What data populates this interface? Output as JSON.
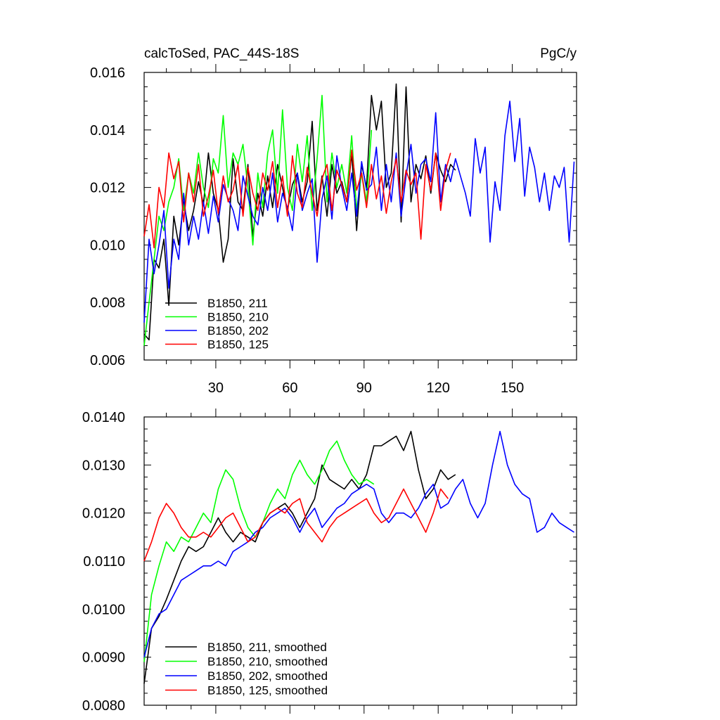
{
  "chart_data": [
    {
      "type": "line",
      "title": "calcToSed, PAC_44S-18S",
      "units": "PgC/y",
      "xlabel": "",
      "ylabel": "",
      "xlim": [
        1,
        176
      ],
      "ylim": [
        0.006,
        0.016
      ],
      "grid": false,
      "legend_position": "bottom-left",
      "xticks": [
        30,
        60,
        90,
        120,
        150
      ],
      "xtick_labels": [
        "30",
        "60",
        "90",
        "120",
        "150"
      ],
      "yticks": [
        0.006,
        0.008,
        0.01,
        0.012,
        0.014,
        0.016
      ],
      "ytick_labels": [
        "0.006",
        "0.008",
        "0.010",
        "0.012",
        "0.014",
        "0.016"
      ],
      "series": [
        {
          "name": "B1850, 211",
          "color": "#000000",
          "x": [
            1,
            3,
            5,
            7,
            9,
            11,
            13,
            15,
            17,
            19,
            21,
            23,
            25,
            27,
            29,
            31,
            33,
            35,
            37,
            39,
            41,
            43,
            45,
            47,
            49,
            51,
            53,
            55,
            57,
            59,
            61,
            63,
            65,
            67,
            69,
            71,
            73,
            75,
            77,
            79,
            81,
            83,
            85,
            87,
            89,
            91,
            93,
            95,
            97,
            99,
            101,
            103,
            105,
            107,
            109,
            111,
            113,
            115,
            117,
            119,
            121,
            123,
            125,
            127
          ],
          "values": [
            0.0069,
            0.0067,
            0.0095,
            0.0092,
            0.0102,
            0.0079,
            0.011,
            0.01,
            0.0115,
            0.0105,
            0.0112,
            0.0122,
            0.0114,
            0.0132,
            0.0118,
            0.0112,
            0.0094,
            0.0102,
            0.013,
            0.0115,
            0.0112,
            0.0128,
            0.0103,
            0.0118,
            0.011,
            0.0124,
            0.0113,
            0.0128,
            0.012,
            0.0112,
            0.0121,
            0.0125,
            0.0115,
            0.0122,
            0.0143,
            0.0112,
            0.0124,
            0.011,
            0.0128,
            0.0118,
            0.0122,
            0.0115,
            0.0132,
            0.0105,
            0.0128,
            0.012,
            0.0152,
            0.014,
            0.015,
            0.012,
            0.0125,
            0.0156,
            0.0108,
            0.0155,
            0.0115,
            0.0128,
            0.0123,
            0.0131,
            0.0118,
            0.0132,
            0.0126,
            0.0122,
            0.0128,
            0.0126
          ]
        },
        {
          "name": "B1850, 210",
          "color": "#00ff00",
          "x": [
            1,
            3,
            5,
            7,
            9,
            11,
            13,
            15,
            17,
            19,
            21,
            23,
            25,
            27,
            29,
            31,
            33,
            35,
            37,
            39,
            41,
            43,
            45,
            47,
            49,
            51,
            53,
            55,
            57,
            59,
            61,
            63,
            65,
            67,
            69,
            71,
            73,
            75,
            77,
            79,
            81,
            83,
            85,
            87,
            89,
            91,
            93
          ],
          "values": [
            0.0065,
            0.008,
            0.0095,
            0.011,
            0.0105,
            0.0115,
            0.012,
            0.013,
            0.0112,
            0.0125,
            0.0118,
            0.0132,
            0.012,
            0.0113,
            0.013,
            0.0125,
            0.0145,
            0.012,
            0.0132,
            0.0128,
            0.0135,
            0.012,
            0.01,
            0.0125,
            0.0113,
            0.0132,
            0.014,
            0.0118,
            0.0147,
            0.012,
            0.0112,
            0.0135,
            0.0122,
            0.0138,
            0.0112,
            0.013,
            0.0152,
            0.0115,
            0.0132,
            0.012,
            0.0128,
            0.0118,
            0.0138,
            0.0112,
            0.0125,
            0.0115,
            0.014
          ]
        },
        {
          "name": "B1850, 202",
          "color": "#0000ff",
          "x": [
            1,
            3,
            5,
            7,
            9,
            11,
            13,
            15,
            17,
            19,
            21,
            23,
            25,
            27,
            29,
            31,
            33,
            35,
            37,
            39,
            41,
            43,
            45,
            47,
            49,
            51,
            53,
            55,
            57,
            59,
            61,
            63,
            65,
            67,
            69,
            71,
            73,
            75,
            77,
            79,
            81,
            83,
            85,
            87,
            89,
            91,
            93,
            95,
            97,
            99,
            101,
            103,
            105,
            107,
            109,
            111,
            113,
            115,
            117,
            119,
            121,
            123,
            125,
            127,
            129,
            131,
            133,
            135,
            137,
            139,
            141,
            143,
            145,
            147,
            149,
            151,
            153,
            155,
            157,
            159,
            161,
            163,
            165,
            167,
            169,
            171,
            173,
            175
          ],
          "values": [
            0.0073,
            0.0102,
            0.009,
            0.01,
            0.0112,
            0.0085,
            0.0102,
            0.0095,
            0.0118,
            0.01,
            0.011,
            0.0102,
            0.0115,
            0.0104,
            0.0117,
            0.0108,
            0.0121,
            0.0116,
            0.0112,
            0.0105,
            0.0124,
            0.0117,
            0.011,
            0.0107,
            0.012,
            0.0112,
            0.0125,
            0.0108,
            0.0118,
            0.0113,
            0.0105,
            0.0125,
            0.0112,
            0.0118,
            0.0123,
            0.0094,
            0.0116,
            0.0124,
            0.0109,
            0.0131,
            0.012,
            0.0112,
            0.0125,
            0.011,
            0.0129,
            0.0119,
            0.0121,
            0.0134,
            0.0112,
            0.0128,
            0.0115,
            0.0132,
            0.011,
            0.0124,
            0.0135,
            0.0118,
            0.0128,
            0.013,
            0.0122,
            0.0146,
            0.0115,
            0.0128,
            0.0122,
            0.013,
            0.0124,
            0.0118,
            0.011,
            0.0137,
            0.0125,
            0.0134,
            0.0101,
            0.0122,
            0.0112,
            0.0138,
            0.015,
            0.0129,
            0.0144,
            0.0117,
            0.0134,
            0.0127,
            0.0115,
            0.0125,
            0.0112,
            0.0124,
            0.012,
            0.0127,
            0.0101,
            0.0129
          ]
        },
        {
          "name": "B1850, 125",
          "color": "#ff0000",
          "x": [
            1,
            3,
            5,
            7,
            9,
            11,
            13,
            15,
            17,
            19,
            21,
            23,
            25,
            27,
            29,
            31,
            33,
            35,
            37,
            39,
            41,
            43,
            45,
            47,
            49,
            51,
            53,
            55,
            57,
            59,
            61,
            63,
            65,
            67,
            69,
            71,
            73,
            75,
            77,
            79,
            81,
            83,
            85,
            87,
            89,
            91,
            93,
            95,
            97,
            99,
            101,
            103,
            105,
            107,
            109,
            111,
            113,
            115,
            117,
            119,
            121,
            123,
            125
          ],
          "values": [
            0.0103,
            0.0114,
            0.0099,
            0.012,
            0.0113,
            0.0132,
            0.0123,
            0.0129,
            0.0108,
            0.0125,
            0.0115,
            0.0128,
            0.011,
            0.0117,
            0.0126,
            0.0111,
            0.0124,
            0.0115,
            0.0119,
            0.0128,
            0.011,
            0.0127,
            0.0118,
            0.0112,
            0.0125,
            0.0119,
            0.0129,
            0.0113,
            0.0124,
            0.011,
            0.0131,
            0.0118,
            0.0113,
            0.0127,
            0.0118,
            0.011,
            0.0123,
            0.0128,
            0.0112,
            0.0126,
            0.0121,
            0.0115,
            0.0133,
            0.0119,
            0.0125,
            0.0113,
            0.0128,
            0.0116,
            0.0124,
            0.0111,
            0.0122,
            0.013,
            0.0115,
            0.0126,
            0.0121,
            0.0125,
            0.0102,
            0.0128,
            0.0119,
            0.0132,
            0.0112,
            0.0126,
            0.0132
          ]
        }
      ]
    },
    {
      "type": "line",
      "title": "",
      "xlabel": "",
      "ylabel": "",
      "xlim": [
        1,
        176
      ],
      "ylim": [
        0.008,
        0.014
      ],
      "grid": false,
      "legend_position": "bottom-left",
      "xticks": [
        30,
        60,
        90,
        120,
        150
      ],
      "xtick_labels": [],
      "yticks": [
        0.008,
        0.009,
        0.01,
        0.011,
        0.012,
        0.013,
        0.014
      ],
      "ytick_labels": [
        "0.0080",
        "0.0090",
        "0.0100",
        "0.0110",
        "0.0120",
        "0.0130",
        "0.0140"
      ],
      "series": [
        {
          "name": "B1850, 211, smoothed",
          "color": "#000000",
          "x": [
            1,
            4,
            7,
            10,
            13,
            16,
            19,
            22,
            25,
            28,
            31,
            34,
            37,
            40,
            43,
            46,
            49,
            52,
            55,
            58,
            61,
            64,
            67,
            70,
            73,
            76,
            79,
            82,
            85,
            88,
            91,
            94,
            97,
            100,
            103,
            106,
            109,
            112,
            115,
            118,
            121,
            124,
            127
          ],
          "values": [
            0.00845,
            0.0096,
            0.00985,
            0.0102,
            0.0106,
            0.011,
            0.0113,
            0.0112,
            0.0113,
            0.0116,
            0.0119,
            0.0116,
            0.0114,
            0.0116,
            0.0115,
            0.0114,
            0.0118,
            0.012,
            0.0121,
            0.0122,
            0.012,
            0.0117,
            0.012,
            0.0123,
            0.013,
            0.0127,
            0.0126,
            0.0125,
            0.0127,
            0.0125,
            0.0128,
            0.0134,
            0.0134,
            0.0135,
            0.0136,
            0.0133,
            0.0137,
            0.0129,
            0.0123,
            0.0125,
            0.0129,
            0.0127,
            0.0128
          ]
        },
        {
          "name": "B1850, 210, smoothed",
          "color": "#00ff00",
          "x": [
            1,
            4,
            7,
            10,
            13,
            16,
            19,
            22,
            25,
            28,
            31,
            34,
            37,
            40,
            43,
            46,
            49,
            52,
            55,
            58,
            61,
            64,
            67,
            70,
            73,
            76,
            79,
            82,
            85,
            88,
            91,
            94
          ],
          "values": [
            0.0089,
            0.0103,
            0.0109,
            0.0114,
            0.0112,
            0.0115,
            0.0114,
            0.0117,
            0.012,
            0.0118,
            0.0125,
            0.0129,
            0.0127,
            0.0121,
            0.0117,
            0.0115,
            0.0118,
            0.0122,
            0.0125,
            0.0123,
            0.0128,
            0.0131,
            0.0128,
            0.0126,
            0.0129,
            0.0133,
            0.0135,
            0.0131,
            0.0128,
            0.0126,
            0.0127,
            0.0126
          ]
        },
        {
          "name": "B1850, 202, smoothed",
          "color": "#0000ff",
          "x": [
            1,
            4,
            7,
            10,
            13,
            16,
            19,
            22,
            25,
            28,
            31,
            34,
            37,
            40,
            43,
            46,
            49,
            52,
            55,
            58,
            61,
            64,
            67,
            70,
            73,
            76,
            79,
            82,
            85,
            88,
            91,
            94,
            97,
            100,
            103,
            106,
            109,
            112,
            115,
            118,
            121,
            124,
            127,
            130,
            133,
            136,
            139,
            142,
            145,
            148,
            151,
            154,
            157,
            160,
            163,
            166,
            169,
            172,
            175
          ],
          "values": [
            0.009,
            0.0096,
            0.0099,
            0.01,
            0.0103,
            0.0106,
            0.0107,
            0.0108,
            0.0109,
            0.0109,
            0.011,
            0.0109,
            0.0112,
            0.0113,
            0.0114,
            0.0116,
            0.0117,
            0.0119,
            0.012,
            0.0121,
            0.0119,
            0.0116,
            0.0119,
            0.0121,
            0.0117,
            0.0119,
            0.0121,
            0.0122,
            0.0124,
            0.0125,
            0.0126,
            0.0125,
            0.012,
            0.0118,
            0.012,
            0.012,
            0.0119,
            0.0121,
            0.0124,
            0.0126,
            0.0121,
            0.0122,
            0.0125,
            0.0127,
            0.0122,
            0.0119,
            0.0122,
            0.013,
            0.0137,
            0.013,
            0.0126,
            0.0124,
            0.0123,
            0.0116,
            0.0117,
            0.012,
            0.0118,
            0.0117,
            0.0116
          ]
        },
        {
          "name": "B1850, 125, smoothed",
          "color": "#ff0000",
          "x": [
            1,
            4,
            7,
            10,
            13,
            16,
            19,
            22,
            25,
            28,
            31,
            34,
            37,
            40,
            43,
            46,
            49,
            52,
            55,
            58,
            61,
            64,
            67,
            70,
            73,
            76,
            79,
            82,
            85,
            88,
            91,
            94,
            97,
            100,
            103,
            106,
            109,
            112,
            115,
            118,
            121,
            124
          ],
          "values": [
            0.011,
            0.0114,
            0.0119,
            0.0122,
            0.012,
            0.0117,
            0.0115,
            0.0115,
            0.0116,
            0.0115,
            0.0117,
            0.0119,
            0.012,
            0.0117,
            0.0114,
            0.0115,
            0.0118,
            0.012,
            0.0121,
            0.012,
            0.0122,
            0.0123,
            0.0118,
            0.0116,
            0.0114,
            0.0117,
            0.0119,
            0.012,
            0.0121,
            0.0122,
            0.0123,
            0.012,
            0.0118,
            0.0119,
            0.0122,
            0.0125,
            0.0122,
            0.0119,
            0.0116,
            0.012,
            0.0125,
            0.0123
          ]
        }
      ]
    }
  ]
}
